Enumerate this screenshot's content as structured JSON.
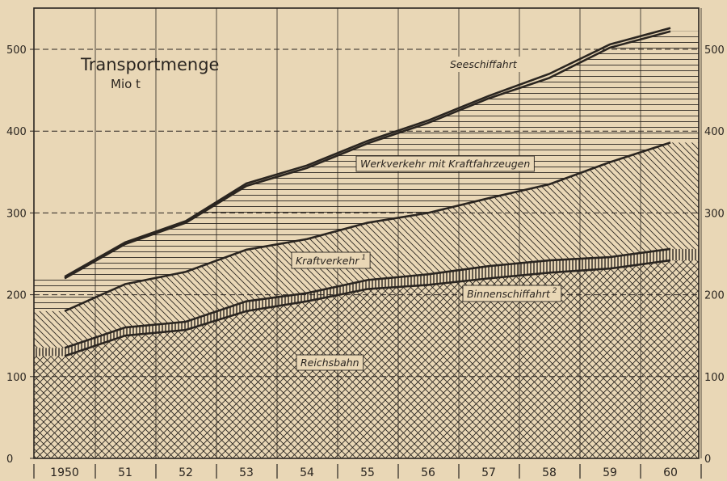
{
  "chart_data": {
    "type": "area",
    "title": "Transportmenge",
    "subtitle": "Mio t",
    "x_labels": [
      "1950",
      "51",
      "52",
      "53",
      "54",
      "55",
      "56",
      "57",
      "58",
      "59",
      "60"
    ],
    "y_ticks": [
      "0",
      "100",
      "200",
      "300",
      "400",
      "500"
    ],
    "ylim": [
      0,
      540
    ],
    "stacked": true,
    "series": [
      {
        "name": "Reichsbahn",
        "label": "Reichsbahn",
        "pattern": "crosshatch",
        "values": [
          125,
          150,
          157,
          180,
          192,
          207,
          212,
          220,
          227,
          232,
          242
        ]
      },
      {
        "name": "Binnenschiffahrt",
        "label": "Binnenschiffahrt",
        "superscript": "2",
        "pattern": "vertical",
        "values": [
          135,
          160,
          167,
          192,
          202,
          218,
          225,
          235,
          242,
          246,
          256
        ]
      },
      {
        "name": "Kraftverkehr",
        "label": "Kraftverkehr",
        "superscript": "1",
        "pattern": "diagonal",
        "values": [
          180,
          213,
          228,
          255,
          268,
          288,
          300,
          318,
          335,
          362,
          386
        ]
      },
      {
        "name": "Werkverkehr mit Kraftfahrzeugen",
        "label": "Werkverkehr mit Kraftfahrzeugen",
        "pattern": "horizontal",
        "values": [
          220,
          262,
          288,
          333,
          355,
          385,
          410,
          440,
          465,
          502,
          522
        ]
      },
      {
        "name": "Seeschiffahrt",
        "label": "Seeschiffahrt",
        "pattern": "none",
        "values": [
          222,
          264,
          290,
          336,
          358,
          388,
          413,
          443,
          470,
          506,
          526
        ]
      }
    ],
    "grid": true,
    "colors": {
      "background": "#e9d7b6",
      "ink": "#2a2520"
    }
  }
}
